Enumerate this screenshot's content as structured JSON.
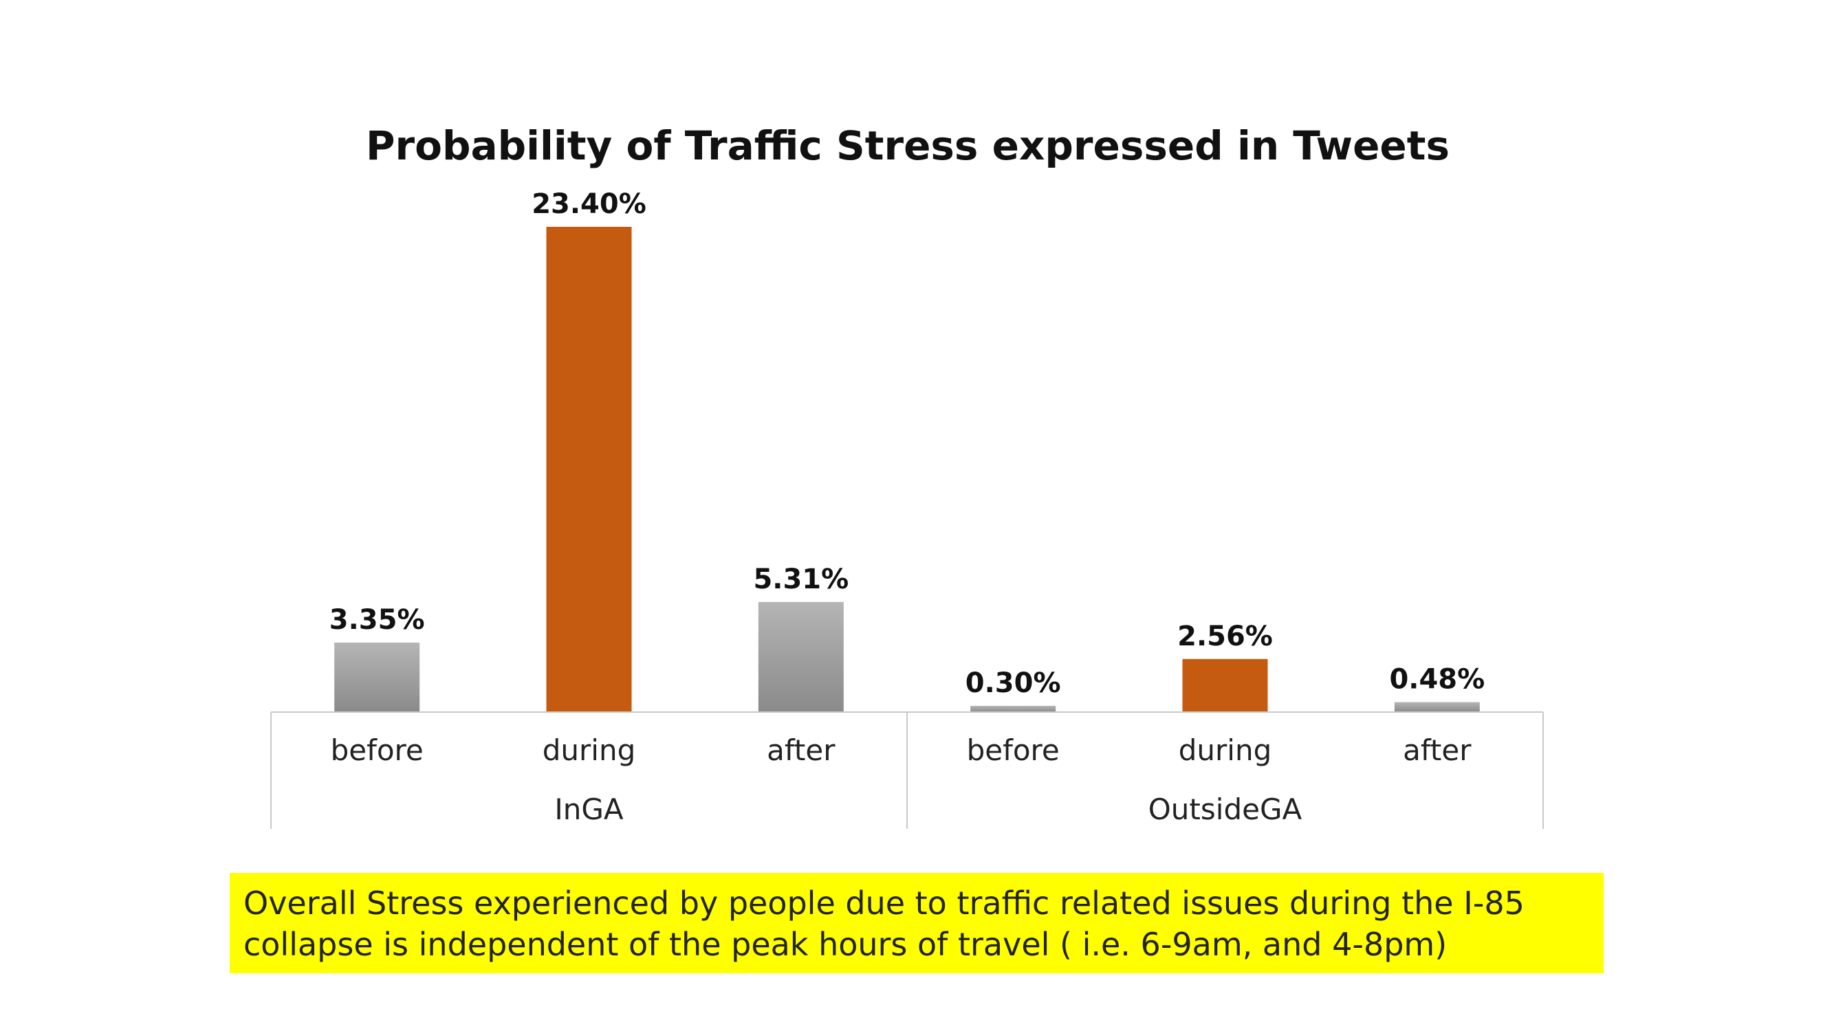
{
  "chart_data": {
    "type": "bar",
    "title": "Probability of Traffic Stress expressed in Tweets",
    "groups": [
      {
        "name": "InGA",
        "categories": [
          "before",
          "during",
          "after"
        ],
        "values": [
          3.35,
          23.4,
          5.31
        ],
        "labels": [
          "3.35%",
          "23.40%",
          "5.31%"
        ]
      },
      {
        "name": "OutsideGA",
        "categories": [
          "before",
          "during",
          "after"
        ],
        "values": [
          0.3,
          2.56,
          0.48
        ],
        "labels": [
          "0.30%",
          "2.56%",
          "0.48%"
        ]
      }
    ],
    "ylim": [
      0,
      23.4
    ],
    "grid": false,
    "colors": {
      "highlight": "#c55a11",
      "gray_top": "#b5b5b5",
      "gray_bottom": "#8a8a8a",
      "axis": "#c8c8c8"
    }
  },
  "note": {
    "lines": [
      "Overall Stress experienced by people due to traffic related issues during the I-85",
      "collapse is independent of the peak hours of travel ( i.e. 6-9am, and 4-8pm)"
    ],
    "background": "#ffff00"
  }
}
